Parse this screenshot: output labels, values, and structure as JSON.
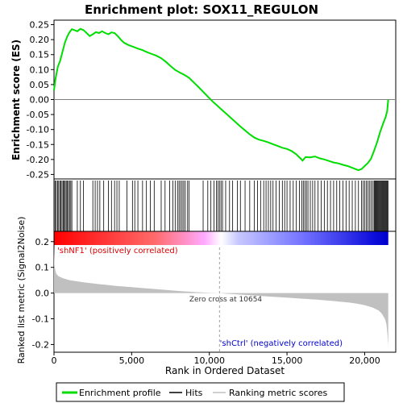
{
  "chart_data": {
    "type": "line",
    "title": "Enrichment plot: SOX11_REGULON",
    "es_panel": {
      "ylabel": "Enrichment score (ES)",
      "ylim": [
        -0.265,
        0.265
      ],
      "yticks": [
        0.25,
        0.2,
        0.15,
        0.1,
        0.05,
        0.0,
        -0.05,
        -0.1,
        -0.15,
        -0.2,
        -0.25
      ],
      "ytick_labels": [
        "0.25",
        "0.20",
        "0.15",
        "0.10",
        "0.05",
        "0.00",
        "-0.05",
        "-0.10",
        "-0.15",
        "-0.20",
        "-0.25"
      ],
      "series": [
        {
          "name": "Enrichment profile",
          "color": "#00dd00",
          "x": [
            0,
            100,
            250,
            400,
            550,
            700,
            850,
            1000,
            1150,
            1300,
            1500,
            1700,
            1900,
            2100,
            2300,
            2500,
            2700,
            2900,
            3100,
            3300,
            3500,
            3700,
            3900,
            4100,
            4300,
            4500,
            4800,
            5100,
            5400,
            5700,
            6000,
            6300,
            6600,
            6900,
            7200,
            7500,
            7800,
            8100,
            8400,
            8700,
            9000,
            9300,
            9600,
            9900,
            10200,
            10500,
            10800,
            11100,
            11400,
            11700,
            12000,
            12300,
            12600,
            12900,
            13200,
            13500,
            13800,
            14100,
            14400,
            14700,
            15000,
            15300,
            15600,
            15900,
            16000,
            16200,
            16500,
            16800,
            17100,
            17400,
            17700,
            18000,
            18300,
            18600,
            18900,
            19200,
            19400,
            19600,
            19800,
            20000,
            20200,
            20400,
            20600,
            20800,
            21000,
            21200,
            21350,
            21450,
            21520
          ],
          "y": [
            0.03,
            0.07,
            0.11,
            0.13,
            0.16,
            0.19,
            0.21,
            0.225,
            0.235,
            0.232,
            0.228,
            0.236,
            0.232,
            0.222,
            0.212,
            0.218,
            0.225,
            0.222,
            0.228,
            0.222,
            0.218,
            0.224,
            0.222,
            0.212,
            0.2,
            0.19,
            0.182,
            0.176,
            0.17,
            0.165,
            0.158,
            0.152,
            0.146,
            0.138,
            0.126,
            0.112,
            0.099,
            0.09,
            0.082,
            0.072,
            0.057,
            0.042,
            0.026,
            0.01,
            -0.006,
            -0.02,
            -0.034,
            -0.048,
            -0.062,
            -0.076,
            -0.09,
            -0.103,
            -0.116,
            -0.127,
            -0.134,
            -0.138,
            -0.143,
            -0.149,
            -0.155,
            -0.161,
            -0.165,
            -0.172,
            -0.183,
            -0.198,
            -0.204,
            -0.192,
            -0.193,
            -0.19,
            -0.196,
            -0.2,
            -0.205,
            -0.21,
            -0.213,
            -0.218,
            -0.222,
            -0.228,
            -0.232,
            -0.236,
            -0.232,
            -0.222,
            -0.212,
            -0.198,
            -0.172,
            -0.142,
            -0.108,
            -0.078,
            -0.058,
            -0.038,
            0.0
          ]
        }
      ]
    },
    "hits_panel": {
      "name": "Hits",
      "hit_ranks": [
        10,
        80,
        150,
        230,
        300,
        380,
        450,
        520,
        600,
        660,
        720,
        790,
        860,
        930,
        1000,
        1080,
        1150,
        1500,
        1700,
        1900,
        2500,
        2650,
        2800,
        2950,
        3200,
        3500,
        3700,
        3900,
        4050,
        4200,
        4700,
        5050,
        5200,
        5400,
        5700,
        5950,
        6200,
        6450,
        6900,
        7150,
        7450,
        7650,
        7800,
        7950,
        8050,
        8150,
        8250,
        8350,
        8450,
        8600,
        8700,
        9600,
        9900,
        10100,
        10300,
        10450,
        10550,
        10650,
        10750,
        10850,
        11050,
        11300,
        11500,
        11800,
        12000,
        12300,
        12600,
        12900,
        13100,
        13300,
        13500,
        13650,
        13800,
        13950,
        14100,
        14300,
        14500,
        14700,
        14850,
        15000,
        15200,
        15400,
        15600,
        15800,
        15950,
        16050,
        16150,
        16250,
        16350,
        16500,
        16650,
        16800,
        17000,
        17200,
        17400,
        17600,
        17800,
        18000,
        18200,
        18400,
        18600,
        18800,
        19000,
        19200,
        19400,
        19600,
        19800,
        19900,
        20000,
        20100,
        20200,
        20300,
        20400,
        20500,
        20600,
        20650,
        20700,
        20750,
        20800,
        20850,
        20900,
        20950,
        21000,
        21050,
        21100,
        21150,
        21200,
        21250,
        21300,
        21350,
        21400,
        21450,
        21500
      ]
    },
    "metric_panel": {
      "xlabel": "Rank in Ordered Dataset",
      "ylabel": "Ranked list metric (Signal2Noise)",
      "ylim": [
        -0.23,
        0.24
      ],
      "yticks": [
        0.2,
        0.1,
        0.0,
        -0.1,
        -0.2
      ],
      "ytick_labels": [
        "0.2",
        "0.1",
        "0.0",
        "-0.1",
        "-0.2"
      ],
      "series": [
        {
          "name": "Ranking metric scores",
          "color": "#c0c0c0",
          "x": [
            0,
            30,
            80,
            150,
            300,
            600,
            1000,
            2000,
            3000,
            4000,
            5000,
            6000,
            7000,
            8000,
            9000,
            10000,
            10654,
            11000,
            12000,
            13000,
            14000,
            15000,
            16000,
            17000,
            18000,
            19000,
            19500,
            20000,
            20500,
            20900,
            21100,
            21300,
            21400,
            21450,
            21500,
            21520
          ],
          "y": [
            0.18,
            0.11,
            0.09,
            0.075,
            0.065,
            0.057,
            0.05,
            0.041,
            0.034,
            0.028,
            0.023,
            0.018,
            0.013,
            0.008,
            0.004,
            0.001,
            0.0,
            -0.002,
            -0.006,
            -0.01,
            -0.014,
            -0.018,
            -0.022,
            -0.026,
            -0.031,
            -0.037,
            -0.041,
            -0.047,
            -0.056,
            -0.068,
            -0.08,
            -0.1,
            -0.12,
            -0.15,
            -0.19,
            -0.205
          ]
        }
      ],
      "zero_cross_label": "Zero cross at 10654",
      "zero_cross_rank": 10654,
      "pos_label": "'shNF1' (positively correlated)",
      "neg_label": "'shCtrl' (negatively correlated)"
    },
    "x_axis": {
      "xlim": [
        0,
        22000
      ],
      "ticks": [
        0,
        5000,
        10000,
        15000,
        20000
      ],
      "tick_labels": [
        "0",
        "5,000",
        "10,000",
        "15,000",
        "20,000"
      ]
    },
    "legend": {
      "placement": "bottom",
      "entries": [
        "Enrichment profile",
        "Hits",
        "Ranking metric scores"
      ]
    },
    "colors": {
      "profile": "#00dd00",
      "pos_band": "#ff0000",
      "neg_band": "#0000ff",
      "zero_line": "#808080",
      "metric_fill": "#c0c0c0"
    }
  }
}
